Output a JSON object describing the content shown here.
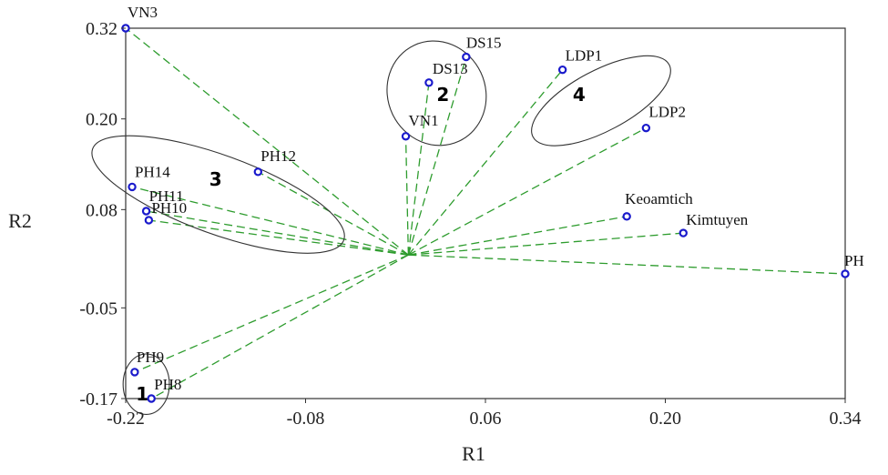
{
  "chart_data": {
    "type": "scatter",
    "title": "",
    "xlabel": "R1",
    "ylabel": "R2",
    "xlim": [
      -0.22,
      0.34
    ],
    "ylim": [
      -0.17,
      0.32
    ],
    "xticks": [
      "-0.22",
      "-0.08",
      "0.06",
      "0.20",
      "0.34"
    ],
    "yticks": [
      "0.32",
      "0.20",
      "0.08",
      "-0.05",
      "-0.17"
    ],
    "grid": false,
    "origin": [
      0.0,
      0.02
    ],
    "point_color": "#1a1acc",
    "vector_color": "#2e9c2e",
    "ellipse_color": "#333333",
    "points": [
      {
        "label": "VN3",
        "x": -0.22,
        "y": 0.32
      },
      {
        "label": "DS15",
        "x": 0.045,
        "y": 0.282
      },
      {
        "label": "DS13",
        "x": 0.016,
        "y": 0.248
      },
      {
        "label": "VN1",
        "x": -0.002,
        "y": 0.177
      },
      {
        "label": "LDP1",
        "x": 0.12,
        "y": 0.265
      },
      {
        "label": "LDP2",
        "x": 0.185,
        "y": 0.188
      },
      {
        "label": "PH12",
        "x": -0.117,
        "y": 0.13
      },
      {
        "label": "PH14",
        "x": -0.215,
        "y": 0.11
      },
      {
        "label": "PH11",
        "x": -0.204,
        "y": 0.078
      },
      {
        "label": "PH10",
        "x": -0.202,
        "y": 0.066
      },
      {
        "label": "Keoamtich",
        "x": 0.17,
        "y": 0.071
      },
      {
        "label": "Kimtuyen",
        "x": 0.214,
        "y": 0.049
      },
      {
        "label": "PH",
        "x": 0.34,
        "y": -0.005
      },
      {
        "label": "PH9",
        "x": -0.213,
        "y": -0.135
      },
      {
        "label": "PH8",
        "x": -0.2,
        "y": -0.17
      }
    ],
    "clusters": [
      {
        "label": "1",
        "cx": -0.204,
        "cy": -0.151,
        "rx": 0.018,
        "ry": 0.04,
        "angle": 0
      },
      {
        "label": "2",
        "cx": 0.022,
        "cy": 0.234,
        "rx": 0.038,
        "ry": 0.07,
        "angle": 25
      },
      {
        "label": "3",
        "cx": -0.148,
        "cy": 0.1,
        "rx": 0.104,
        "ry": 0.052,
        "angle": -20
      },
      {
        "label": "4",
        "cx": 0.15,
        "cy": 0.224,
        "rx": 0.06,
        "ry": 0.04,
        "angle": 28
      }
    ]
  }
}
